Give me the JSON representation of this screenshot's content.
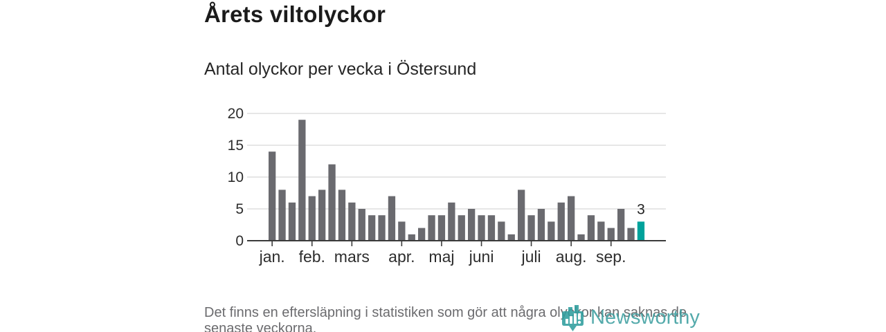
{
  "chart_data": {
    "type": "bar",
    "title": "Årets viltolyckor",
    "subtitle": "Antal olyckor per vecka i Östersund",
    "xlabel": "",
    "ylabel": "",
    "x_unit": "vecka",
    "values": [
      14,
      8,
      6,
      19,
      7,
      8,
      12,
      8,
      6,
      5,
      4,
      4,
      7,
      3,
      1,
      2,
      4,
      4,
      6,
      4,
      5,
      4,
      4,
      3,
      1,
      8,
      4,
      5,
      3,
      6,
      7,
      1,
      4,
      3,
      2,
      5,
      2,
      3
    ],
    "weeks": [
      1,
      2,
      3,
      4,
      5,
      6,
      7,
      8,
      9,
      10,
      11,
      12,
      13,
      14,
      15,
      16,
      17,
      18,
      19,
      20,
      21,
      22,
      23,
      24,
      25,
      26,
      27,
      28,
      29,
      30,
      31,
      32,
      33,
      34,
      35,
      36,
      37,
      38
    ],
    "month_ticks": [
      {
        "label": "jan.",
        "week": 1
      },
      {
        "label": "feb.",
        "week": 5
      },
      {
        "label": "mars",
        "week": 9
      },
      {
        "label": "apr.",
        "week": 14
      },
      {
        "label": "maj",
        "week": 18
      },
      {
        "label": "juni",
        "week": 22
      },
      {
        "label": "juli",
        "week": 27
      },
      {
        "label": "aug.",
        "week": 31
      },
      {
        "label": "sep.",
        "week": 35
      }
    ],
    "y_ticks": [
      0,
      5,
      10,
      15,
      20
    ],
    "ylim": [
      0,
      20
    ],
    "grid": "horizontal",
    "legend": "none",
    "bar_color": "#6a6a6f",
    "highlight_color": "#00a29b",
    "highlight_last_bar": true,
    "last_bar_label": "3"
  },
  "footnote": {
    "lines": [
      "Det finns en eftersläpning i statistiken som gör att några olyckor kan saknas de",
      "senaste veckorna."
    ]
  },
  "logo": {
    "text": "Newsworthy",
    "color": "#3d9fa0"
  }
}
